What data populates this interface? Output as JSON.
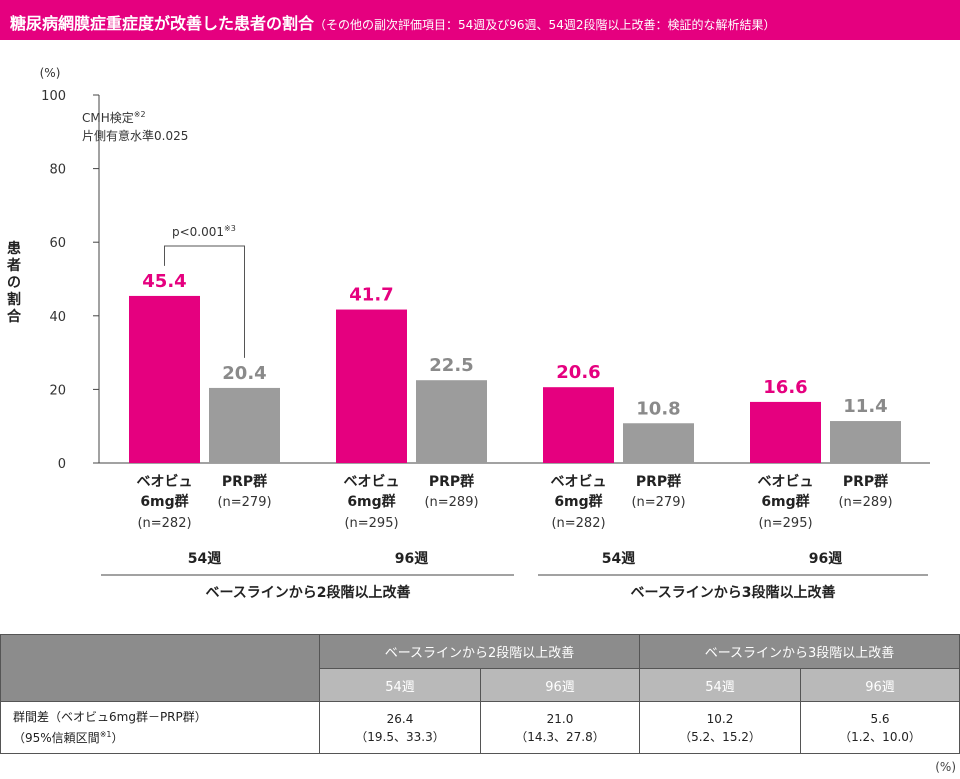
{
  "header": {
    "title": "糖尿病網膜症重症度が改善した患者の割合",
    "subtitle": "（その他の副次評価項目：54週及び96週、54週2段階以上改善：検証的な解析結果）"
  },
  "chart_data": {
    "type": "bar",
    "ylabel": "患者の割合",
    "y_unit": "(%)",
    "ylim": [
      0,
      100
    ],
    "yticks": [
      0,
      20,
      40,
      60,
      80,
      100
    ],
    "test_note_1": "CMH検定",
    "test_note_1_sup": "※2",
    "test_note_2": "片側有意水準0.025",
    "pvalue_label": "p<0.001",
    "pvalue_sup": "※3",
    "groups": [
      {
        "week": "54週",
        "bars": [
          {
            "name1": "ベオビュ",
            "name2": "6mg群",
            "n": "(n=282)",
            "value": 45.4,
            "label": "45.4",
            "color": "#e5007f"
          },
          {
            "name1": "PRP群",
            "name2": "",
            "n": "(n=279)",
            "value": 20.4,
            "label": "20.4",
            "color": "#9c9c9c"
          }
        ]
      },
      {
        "week": "96週",
        "bars": [
          {
            "name1": "ベオビュ",
            "name2": "6mg群",
            "n": "(n=295)",
            "value": 41.7,
            "label": "41.7",
            "color": "#e5007f"
          },
          {
            "name1": "PRP群",
            "name2": "",
            "n": "(n=289)",
            "value": 22.5,
            "label": "22.5",
            "color": "#9c9c9c"
          }
        ]
      },
      {
        "week": "54週",
        "bars": [
          {
            "name1": "ベオビュ",
            "name2": "6mg群",
            "n": "(n=282)",
            "value": 20.6,
            "label": "20.6",
            "color": "#e5007f"
          },
          {
            "name1": "PRP群",
            "name2": "",
            "n": "(n=279)",
            "value": 10.8,
            "label": "10.8",
            "color": "#9c9c9c"
          }
        ]
      },
      {
        "week": "96週",
        "bars": [
          {
            "name1": "ベオビュ",
            "name2": "6mg群",
            "n": "(n=295)",
            "value": 16.6,
            "label": "16.6",
            "color": "#e5007f"
          },
          {
            "name1": "PRP群",
            "name2": "",
            "n": "(n=289)",
            "value": 11.4,
            "label": "11.4",
            "color": "#9c9c9c"
          }
        ]
      }
    ],
    "sections": [
      "ベースラインから2段階以上改善",
      "ベースラインから3段階以上改善"
    ]
  },
  "table": {
    "section_2": "ベースラインから2段階以上改善",
    "section_3": "ベースラインから3段階以上改善",
    "week_54": "54週",
    "week_96": "96週",
    "row_label_1": "群間差（ベオビュ6mg群－PRP群）",
    "row_label_2": "（95%信頼区間",
    "row_label_sup": "※1",
    "row_label_end": "）",
    "cells": [
      {
        "diff": "26.4",
        "ci": "（19.5、33.3）"
      },
      {
        "diff": "21.0",
        "ci": "（14.3、27.8）"
      },
      {
        "diff": "10.2",
        "ci": "（5.2、15.2）"
      },
      {
        "diff": "5.6",
        "ci": "（1.2、10.0）"
      }
    ],
    "unit_note": "(%)"
  }
}
